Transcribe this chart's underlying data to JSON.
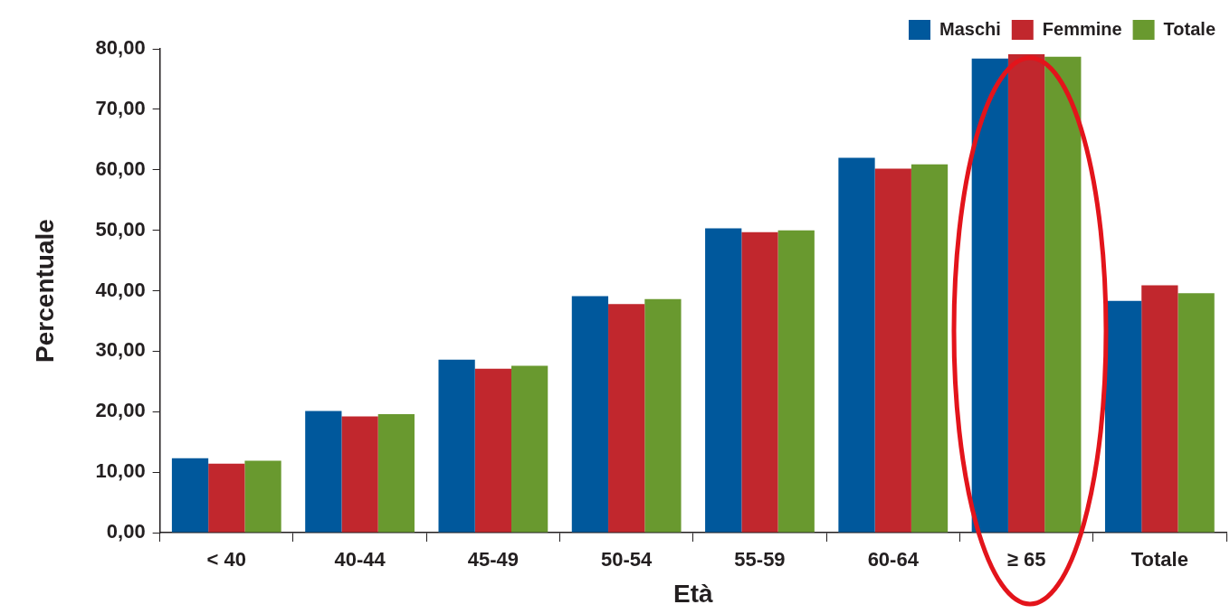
{
  "chart_data": {
    "type": "bar",
    "xlabel": "Età",
    "ylabel": "Percentuale",
    "categories": [
      "< 40",
      "40-44",
      "45-49",
      "50-54",
      "55-59",
      "60-64",
      "≥ 65",
      "Totale"
    ],
    "series": [
      {
        "name": "Maschi",
        "color": "#00589c",
        "values": [
          12.3,
          20.1,
          28.6,
          39.1,
          50.3,
          62.0,
          78.4,
          38.3
        ]
      },
      {
        "name": "Femmine",
        "color": "#c1272d",
        "values": [
          11.4,
          19.2,
          27.1,
          37.8,
          49.7,
          60.2,
          79.1,
          40.9
        ]
      },
      {
        "name": "Totale",
        "color": "#69992f",
        "values": [
          11.9,
          19.6,
          27.6,
          38.6,
          50.0,
          60.9,
          78.7,
          39.6
        ]
      }
    ],
    "ylim": [
      0,
      80
    ],
    "yticks": [
      {
        "value": 0,
        "label": "0,00"
      },
      {
        "value": 10,
        "label": "10,00"
      },
      {
        "value": 20,
        "label": "20,00"
      },
      {
        "value": 30,
        "label": "30,00"
      },
      {
        "value": 40,
        "label": "40,00"
      },
      {
        "value": 50,
        "label": "50,00"
      },
      {
        "value": 60,
        "label": "60,00"
      },
      {
        "value": 70,
        "label": "70,00"
      },
      {
        "value": 80,
        "label": "80,00"
      }
    ],
    "grid": false,
    "legend": "top right"
  }
}
